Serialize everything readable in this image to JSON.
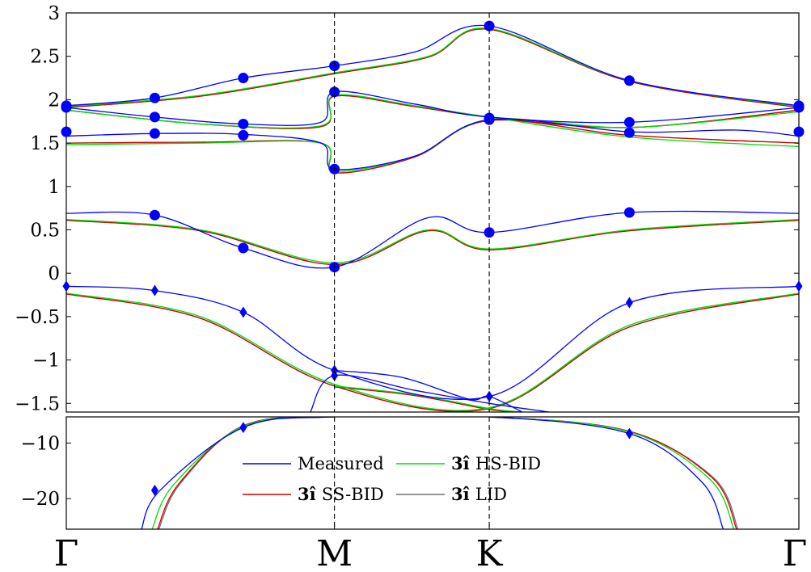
{
  "chart_data": {
    "type": "line",
    "title": "",
    "xlabel": "",
    "ylabel": "",
    "x_ticks": [
      {
        "label": "Γ",
        "pos": 0
      },
      {
        "label": "M",
        "pos": 1
      },
      {
        "label": "K",
        "pos": 1.57735
      },
      {
        "label": "Γ",
        "pos": 2.73205
      }
    ],
    "vlines": [
      1,
      1.57735
    ],
    "xlim": [
      0,
      2.73205
    ],
    "panels": [
      {
        "name": "upper",
        "ylim": [
          -1.6,
          3.0
        ],
        "yticks": [
          {
            "v": 3,
            "label": "3"
          },
          {
            "v": 2.5,
            "label": "2.5"
          },
          {
            "v": 2,
            "label": "2"
          },
          {
            "v": 1.5,
            "label": "1.5"
          },
          {
            "v": 1,
            "label": "1"
          },
          {
            "v": 0.5,
            "label": "0.5"
          },
          {
            "v": 0,
            "label": "0"
          },
          {
            "v": -0.5,
            "label": "−0.5"
          },
          {
            "v": -1,
            "label": "−1"
          },
          {
            "v": -1.5,
            "label": "−1.5"
          }
        ]
      },
      {
        "name": "lower",
        "ylim": [
          -25.5,
          -5.3
        ],
        "yticks": [
          {
            "v": -10,
            "label": "−10"
          },
          {
            "v": -20,
            "label": "−20"
          }
        ]
      }
    ],
    "legend": {
      "placement": "lower panel, center",
      "entries": [
        {
          "name": "Measured",
          "prefix": "",
          "color": "#0000ff"
        },
        {
          "name": "HS-BID",
          "prefix": "3î",
          "color": "#00dd00"
        },
        {
          "name": "SS-BID",
          "prefix": "3î",
          "color": "#cc0000"
        },
        {
          "name": "LID",
          "prefix": "3î",
          "color": "#707070"
        }
      ]
    },
    "series": [
      {
        "name": "Measured",
        "color": "#0000ff",
        "panel": "upper",
        "x": [
          0,
          0.33,
          0.66,
          1,
          1.3,
          1.57735,
          2.1,
          2.73205
        ],
        "y": [
          1.93,
          2.02,
          2.25,
          2.39,
          2.55,
          2.85,
          2.22,
          1.93
        ]
      },
      {
        "name": "Measured",
        "color": "#0000ff",
        "panel": "upper",
        "x": [
          0,
          0.33,
          0.66,
          0.95,
          1,
          1.3,
          1.57735,
          2.1,
          2.73205
        ],
        "y": [
          1.91,
          1.8,
          1.72,
          1.74,
          2.09,
          1.95,
          1.8,
          1.74,
          1.91
        ]
      },
      {
        "name": "Measured",
        "color": "#0000ff",
        "panel": "upper",
        "x": [
          0,
          0.33,
          0.66,
          0.95,
          1,
          1.3,
          1.57735,
          2.1,
          2.5,
          2.73205
        ],
        "y": [
          1.58,
          1.61,
          1.6,
          1.5,
          1.2,
          1.35,
          1.77,
          1.63,
          1.65,
          1.58
        ]
      },
      {
        "name": "Measured",
        "color": "#0000ff",
        "panel": "upper",
        "x": [
          0,
          0.33,
          0.66,
          1,
          1.35,
          1.57735,
          2.1,
          2.73205
        ],
        "y": [
          0.69,
          0.67,
          0.29,
          0.07,
          0.64,
          0.47,
          0.7,
          0.69
        ]
      },
      {
        "name": "Measured",
        "color": "#0000ff",
        "panel": "upper",
        "x": [
          0,
          0.33,
          0.66,
          1,
          1.57735,
          2.1,
          2.73205
        ],
        "y": [
          -0.15,
          -0.2,
          -0.45,
          -1.12,
          -1.42,
          -0.34,
          -0.15
        ]
      },
      {
        "name": "Measured",
        "color": "#0000ff",
        "panel": "upper",
        "x": [
          0.91,
          1,
          1.3,
          1.57735,
          1.8
        ],
        "y": [
          -1.6,
          -1.18,
          -1.35,
          -1.5,
          -1.6
        ]
      },
      {
        "name": "Measured",
        "color": "#0000ff",
        "panel": "upper",
        "x": [
          1,
          1.25,
          1.5,
          1.57735,
          1.7
        ],
        "y": [
          -1.12,
          -1.2,
          -1.45,
          -1.42,
          -1.6
        ]
      },
      {
        "name": "Measured",
        "color": "#0000ff",
        "panel": "lower",
        "x": [
          0.28,
          0.35,
          0.66,
          1,
          1.57735,
          2.1,
          2.37,
          2.45
        ],
        "y": [
          -25.5,
          -18.5,
          -7.2,
          -5.3,
          -5.3,
          -8.3,
          -17,
          -25.5
        ]
      },
      {
        "name": "HS-BID",
        "color": "#00dd00",
        "panel": "upper",
        "x": [
          0,
          0.5,
          1,
          1.35,
          1.57735,
          2.1,
          2.73205
        ],
        "y": [
          1.92,
          2.05,
          2.31,
          2.5,
          2.82,
          2.22,
          1.92
        ]
      },
      {
        "name": "HS-BID",
        "color": "#00dd00",
        "panel": "upper",
        "x": [
          0,
          0.5,
          0.95,
          1,
          1.3,
          1.57735,
          2.1,
          2.73205
        ],
        "y": [
          1.88,
          1.72,
          1.7,
          2.05,
          1.93,
          1.8,
          1.57,
          1.46
        ]
      },
      {
        "name": "HS-BID",
        "color": "#00dd00",
        "panel": "upper",
        "x": [
          0,
          0.5,
          0.95,
          1,
          1.3,
          1.57735,
          2.1,
          2.73205
        ],
        "y": [
          1.48,
          1.5,
          1.5,
          1.18,
          1.35,
          1.77,
          1.68,
          1.86
        ]
      },
      {
        "name": "HS-BID",
        "color": "#00dd00",
        "panel": "upper",
        "x": [
          0,
          0.5,
          1,
          1.35,
          1.57735,
          2.1,
          2.73205
        ],
        "y": [
          0.62,
          0.5,
          0.12,
          0.5,
          0.28,
          0.5,
          0.62
        ]
      },
      {
        "name": "HS-BID",
        "color": "#00dd00",
        "panel": "upper",
        "x": [
          0,
          0.5,
          1,
          1.57735,
          2.1,
          2.73205
        ],
        "y": [
          -0.23,
          -0.5,
          -1.28,
          -1.55,
          -0.6,
          -0.23
        ]
      },
      {
        "name": "HS-BID",
        "color": "#00dd00",
        "panel": "upper",
        "x": [
          1,
          1.3,
          1.57735,
          1.7
        ],
        "y": [
          -1.3,
          -1.4,
          -1.56,
          -1.6
        ]
      },
      {
        "name": "HS-BID",
        "color": "#00dd00",
        "panel": "lower",
        "x": [
          0.32,
          0.4,
          0.66,
          1,
          1.57735,
          2.1,
          2.4,
          2.49
        ],
        "y": [
          -25.5,
          -17.5,
          -7.0,
          -5.3,
          -5.3,
          -8.0,
          -16.5,
          -25.5
        ]
      },
      {
        "name": "SS-BID",
        "color": "#cc0000",
        "panel": "upper",
        "x": [
          0,
          0.5,
          1,
          1.35,
          1.57735,
          2.1,
          2.73205
        ],
        "y": [
          1.91,
          2.04,
          2.3,
          2.49,
          2.81,
          2.21,
          1.91
        ]
      },
      {
        "name": "SS-BID",
        "color": "#cc0000",
        "panel": "upper",
        "x": [
          0,
          0.5,
          0.95,
          1,
          1.3,
          1.57735,
          2.1,
          2.73205
        ],
        "y": [
          1.88,
          1.72,
          1.69,
          2.04,
          1.92,
          1.8,
          1.68,
          1.88
        ]
      },
      {
        "name": "SS-BID",
        "color": "#cc0000",
        "panel": "upper",
        "x": [
          0,
          0.5,
          0.95,
          1,
          1.3,
          1.57735,
          2.1,
          2.73205
        ],
        "y": [
          1.5,
          1.51,
          1.5,
          1.16,
          1.34,
          1.76,
          1.59,
          1.5
        ]
      },
      {
        "name": "SS-BID",
        "color": "#cc0000",
        "panel": "upper",
        "x": [
          0,
          0.5,
          1,
          1.35,
          1.57735,
          2.1,
          2.73205
        ],
        "y": [
          0.61,
          0.49,
          0.1,
          0.49,
          0.27,
          0.49,
          0.61
        ]
      },
      {
        "name": "SS-BID",
        "color": "#cc0000",
        "panel": "upper",
        "x": [
          0,
          0.5,
          1,
          1.57735,
          2.1,
          2.73205
        ],
        "y": [
          -0.24,
          -0.52,
          -1.3,
          -1.56,
          -0.62,
          -0.24
        ]
      },
      {
        "name": "SS-BID",
        "color": "#cc0000",
        "panel": "upper",
        "x": [
          1,
          1.3,
          1.57735,
          1.7
        ],
        "y": [
          -1.31,
          -1.41,
          -1.57,
          -1.6
        ]
      },
      {
        "name": "SS-BID",
        "color": "#cc0000",
        "panel": "lower",
        "x": [
          0.34,
          0.42,
          0.66,
          1,
          1.57735,
          2.1,
          2.41,
          2.5
        ],
        "y": [
          -25.5,
          -17.3,
          -6.9,
          -5.3,
          -5.3,
          -7.9,
          -16.3,
          -25.5
        ]
      },
      {
        "name": "LID",
        "color": "#707070",
        "panel": "upper",
        "x": [
          0,
          0.5,
          1,
          1.35,
          1.57735,
          2.1,
          2.73205
        ],
        "y": [
          1.91,
          2.04,
          2.3,
          2.49,
          2.81,
          2.21,
          1.91
        ]
      },
      {
        "name": "LID",
        "color": "#707070",
        "panel": "upper",
        "x": [
          0,
          0.5,
          0.95,
          1,
          1.3,
          1.57735,
          2.1,
          2.73205
        ],
        "y": [
          1.88,
          1.72,
          1.69,
          2.04,
          1.92,
          1.8,
          1.68,
          1.88
        ]
      },
      {
        "name": "LID",
        "color": "#707070",
        "panel": "upper",
        "x": [
          0,
          0.5,
          0.95,
          1,
          1.3,
          1.57735,
          2.1,
          2.73205
        ],
        "y": [
          1.5,
          1.51,
          1.5,
          1.16,
          1.34,
          1.76,
          1.59,
          1.5
        ]
      },
      {
        "name": "LID",
        "color": "#707070",
        "panel": "upper",
        "x": [
          0,
          0.5,
          1,
          1.35,
          1.57735,
          2.1,
          2.73205
        ],
        "y": [
          0.61,
          0.49,
          0.1,
          0.49,
          0.27,
          0.49,
          0.61
        ]
      },
      {
        "name": "LID",
        "color": "#707070",
        "panel": "upper",
        "x": [
          0,
          0.5,
          1,
          1.57735,
          2.1,
          2.73205
        ],
        "y": [
          -0.24,
          -0.52,
          -1.3,
          -1.56,
          -0.62,
          -0.24
        ]
      },
      {
        "name": "LID",
        "color": "#707070",
        "panel": "upper",
        "x": [
          1,
          1.3,
          1.57735,
          1.7
        ],
        "y": [
          -1.31,
          -1.41,
          -1.57,
          -1.6
        ]
      },
      {
        "name": "LID",
        "color": "#707070",
        "panel": "lower",
        "x": [
          0.345,
          0.425,
          0.66,
          1,
          1.57735,
          2.1,
          2.415,
          2.505
        ],
        "y": [
          -25.5,
          -17.3,
          -6.9,
          -5.3,
          -5.3,
          -7.9,
          -16.3,
          -25.5
        ]
      }
    ],
    "markers": [
      {
        "shape": "circle",
        "color": "#0000ff",
        "panel": "upper",
        "x": [
          0,
          0.33,
          0.66,
          1,
          1.57735,
          2.1,
          2.73205
        ],
        "y": [
          1.93,
          2.02,
          2.25,
          2.39,
          2.85,
          2.22,
          1.93
        ]
      },
      {
        "shape": "circle",
        "color": "#0000ff",
        "panel": "upper",
        "x": [
          0,
          0.33,
          0.66,
          1,
          1.57735,
          2.1,
          2.73205
        ],
        "y": [
          1.91,
          1.8,
          1.72,
          2.09,
          1.79,
          1.74,
          1.91
        ]
      },
      {
        "shape": "circle",
        "color": "#0000ff",
        "panel": "upper",
        "x": [
          0,
          0.33,
          0.66,
          1,
          1.57735,
          2.1,
          2.73205
        ],
        "y": [
          1.63,
          1.61,
          1.59,
          1.2,
          1.77,
          1.62,
          1.63
        ]
      },
      {
        "shape": "circle",
        "color": "#0000ff",
        "panel": "upper",
        "x": [
          0.33,
          0.66,
          1,
          1.57735,
          2.1
        ],
        "y": [
          0.67,
          0.29,
          0.07,
          0.47,
          0.7
        ]
      },
      {
        "shape": "diamond",
        "color": "#0000ff",
        "panel": "upper",
        "x": [
          0,
          0.33,
          0.66,
          1,
          1,
          1.57735,
          2.1,
          2.73205
        ],
        "y": [
          -0.15,
          -0.2,
          -0.45,
          -1.12,
          -1.18,
          -1.42,
          -0.34,
          -0.15
        ]
      },
      {
        "shape": "diamond",
        "color": "#0000ff",
        "panel": "lower",
        "x": [
          0.33,
          0.66,
          2.1
        ],
        "y": [
          -18.5,
          -7.2,
          -8.3
        ]
      }
    ]
  }
}
